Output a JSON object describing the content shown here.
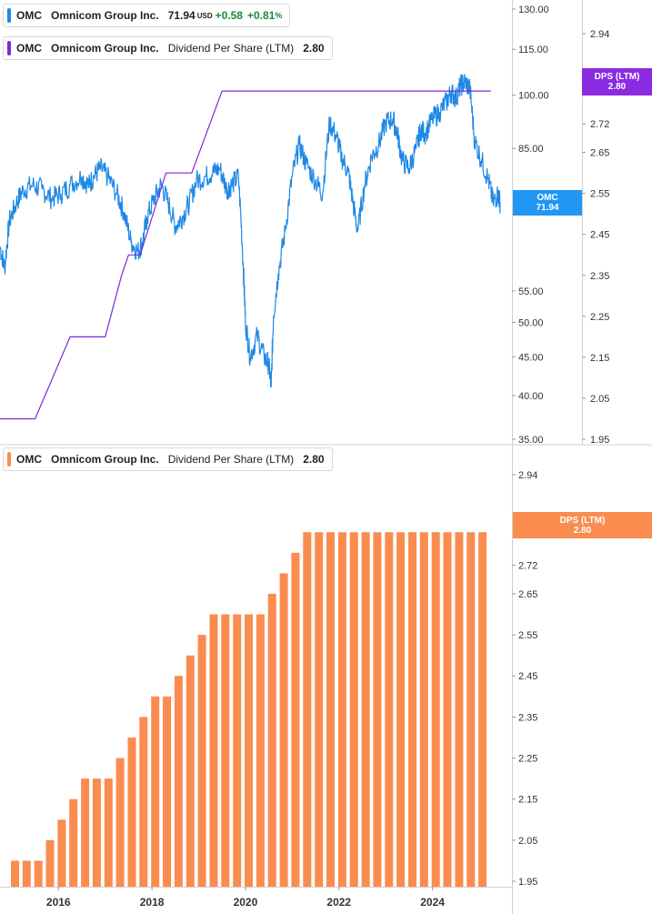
{
  "colors": {
    "price": "#1e88e5",
    "dps_line": "#7b2bd4",
    "dps_bar": "#fa8c50",
    "dps_tag_top": "#8a2be2",
    "price_tag": "#2196f3",
    "positive": "#1a8a3a"
  },
  "legend_top_price": {
    "ticker": "OMC",
    "name": "Omnicom Group Inc.",
    "price": "71.94",
    "currency": "USD",
    "change": "+0.58",
    "change_pct": "+0.81",
    "pct_sign": "%"
  },
  "legend_top_dps": {
    "ticker": "OMC",
    "name": "Omnicom Group Inc.",
    "metric": "Dividend Per Share (LTM)",
    "value": "2.80"
  },
  "legend_bottom_dps": {
    "ticker": "OMC",
    "name": "Omnicom Group Inc.",
    "metric": "Dividend Per Share (LTM)",
    "value": "2.80"
  },
  "tags": {
    "price": {
      "label": "OMC",
      "value": "71.94"
    },
    "dps_top": {
      "label": "DPS (LTM)",
      "value": "2.80"
    },
    "dps_bottom": {
      "label": "DPS (LTM)",
      "value": "2.80"
    }
  },
  "chart_data": [
    {
      "type": "line",
      "series": [
        {
          "name": "Omnicom Group Inc.",
          "points": [
            [
              2015.0,
              63
            ],
            [
              2015.1,
              59
            ],
            [
              2015.2,
              68
            ],
            [
              2015.35,
              72
            ],
            [
              2015.5,
              75
            ],
            [
              2015.7,
              76
            ],
            [
              2015.9,
              75
            ],
            [
              2016.1,
              73
            ],
            [
              2016.3,
              74
            ],
            [
              2016.5,
              76
            ],
            [
              2016.75,
              78
            ],
            [
              2016.9,
              76
            ],
            [
              2017.0,
              78
            ],
            [
              2017.15,
              80
            ],
            [
              2017.3,
              78
            ],
            [
              2017.5,
              74
            ],
            [
              2017.65,
              70
            ],
            [
              2017.8,
              64
            ],
            [
              2017.95,
              62
            ],
            [
              2018.05,
              64
            ],
            [
              2018.15,
              69
            ],
            [
              2018.3,
              73
            ],
            [
              2018.45,
              76
            ],
            [
              2018.6,
              72
            ],
            [
              2018.75,
              67
            ],
            [
              2018.9,
              69
            ],
            [
              2019.05,
              72
            ],
            [
              2019.2,
              77
            ],
            [
              2019.4,
              78
            ],
            [
              2019.55,
              79
            ],
            [
              2019.7,
              80
            ],
            [
              2019.85,
              75
            ],
            [
              2019.95,
              76
            ],
            [
              2020.1,
              78
            ],
            [
              2020.2,
              60
            ],
            [
              2020.25,
              50
            ],
            [
              2020.35,
              45
            ],
            [
              2020.5,
              48
            ],
            [
              2020.65,
              45
            ],
            [
              2020.75,
              44
            ],
            [
              2020.8,
              41
            ],
            [
              2020.85,
              51
            ],
            [
              2020.95,
              58
            ],
            [
              2021.1,
              66
            ],
            [
              2021.25,
              78
            ],
            [
              2021.4,
              86
            ],
            [
              2021.55,
              81
            ],
            [
              2021.75,
              77
            ],
            [
              2021.9,
              74
            ],
            [
              2022.05,
              92
            ],
            [
              2022.2,
              88
            ],
            [
              2022.3,
              83
            ],
            [
              2022.45,
              79
            ],
            [
              2022.55,
              72
            ],
            [
              2022.65,
              66
            ],
            [
              2022.8,
              76
            ],
            [
              2022.95,
              83
            ],
            [
              2023.1,
              86
            ],
            [
              2023.25,
              92
            ],
            [
              2023.4,
              93
            ],
            [
              2023.5,
              89
            ],
            [
              2023.6,
              82
            ],
            [
              2023.75,
              80
            ],
            [
              2023.9,
              85
            ],
            [
              2024.0,
              90
            ],
            [
              2024.1,
              89
            ],
            [
              2024.25,
              93
            ],
            [
              2024.4,
              95
            ],
            [
              2024.55,
              98
            ],
            [
              2024.65,
              101
            ],
            [
              2024.75,
              99
            ],
            [
              2024.85,
              103
            ],
            [
              2024.95,
              104
            ],
            [
              2025.05,
              102
            ],
            [
              2025.15,
              87
            ],
            [
              2025.3,
              82
            ],
            [
              2025.45,
              77
            ],
            [
              2025.55,
              72
            ],
            [
              2025.65,
              74
            ],
            [
              2025.7,
              71.94
            ]
          ]
        },
        {
          "name": "Dividend Per Share (LTM)",
          "points": [
            [
              2015.0,
              2.0
            ],
            [
              2015.75,
              2.0
            ],
            [
              2016.5,
              2.2
            ],
            [
              2017.25,
              2.2
            ],
            [
              2017.6,
              2.35
            ],
            [
              2017.75,
              2.4
            ],
            [
              2018.0,
              2.4
            ],
            [
              2018.55,
              2.6
            ],
            [
              2019.1,
              2.6
            ],
            [
              2019.75,
              2.8
            ],
            [
              2025.5,
              2.8
            ]
          ]
        }
      ],
      "price_axis": {
        "ticks": [
          "130.00",
          "115.00",
          "100.00",
          "85.00",
          "55.00",
          "50.00",
          "45.00",
          "40.00",
          "35.00"
        ],
        "ylim": [
          35,
          130
        ],
        "scale": "log"
      },
      "dps_axis": {
        "ticks": [
          "2.94",
          "2.72",
          "2.65",
          "2.55",
          "2.45",
          "2.35",
          "2.25",
          "2.15",
          "2.05",
          "1.95"
        ],
        "ylim": [
          1.95,
          3.0
        ]
      }
    },
    {
      "type": "bar",
      "series": [
        {
          "name": "Dividend Per Share (LTM)",
          "x": [
            2015.4,
            2015.65,
            2015.9,
            2016.15,
            2016.4,
            2016.65,
            2016.9,
            2017.15,
            2017.4,
            2017.65,
            2017.9,
            2018.15,
            2018.4,
            2018.65,
            2018.9,
            2019.15,
            2019.4,
            2019.65,
            2019.9,
            2020.15,
            2020.4,
            2020.65,
            2020.9,
            2021.15,
            2021.4,
            2021.65,
            2021.9,
            2022.15,
            2022.4,
            2022.65,
            2022.9,
            2023.15,
            2023.4,
            2023.65,
            2023.9,
            2024.15,
            2024.4,
            2024.65,
            2024.9,
            2025.15,
            2025.4
          ],
          "values": [
            2.0,
            2.0,
            2.0,
            2.05,
            2.1,
            2.15,
            2.2,
            2.2,
            2.2,
            2.25,
            2.3,
            2.35,
            2.4,
            2.4,
            2.45,
            2.5,
            2.55,
            2.6,
            2.6,
            2.6,
            2.6,
            2.6,
            2.65,
            2.7,
            2.75,
            2.8,
            2.8,
            2.8,
            2.8,
            2.8,
            2.8,
            2.8,
            2.8,
            2.8,
            2.8,
            2.8,
            2.8,
            2.8,
            2.8,
            2.8,
            2.8
          ]
        }
      ],
      "dps_axis": {
        "ticks": [
          "2.94",
          "2.72",
          "2.65",
          "2.55",
          "2.45",
          "2.35",
          "2.25",
          "2.15",
          "2.05",
          "1.95"
        ],
        "ylim": [
          1.95,
          3.0
        ]
      },
      "x_ticks": [
        "2016",
        "2018",
        "2020",
        "2022",
        "2024"
      ]
    }
  ]
}
